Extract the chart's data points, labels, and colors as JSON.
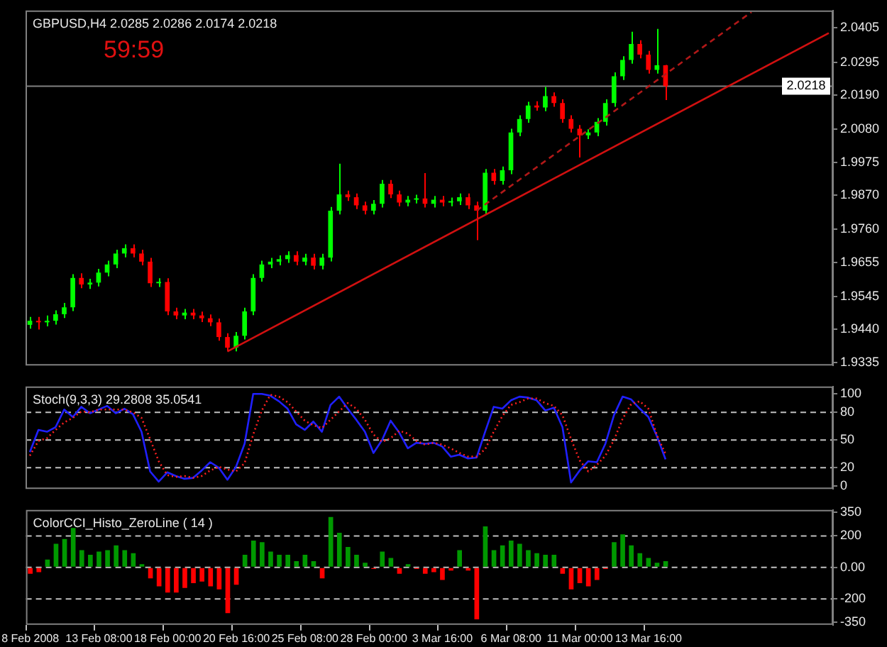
{
  "chart_data": [
    {
      "type": "candlestick",
      "title": "GBPUSD,H4 2.0285 2.0286 2.0174 2.0218",
      "annotations": [
        "59:59"
      ],
      "tick_labels": "y",
      "categories": [
        null,
        null,
        null,
        null,
        null,
        null,
        null,
        null,
        null,
        null,
        null,
        null,
        null,
        null,
        null,
        null,
        null,
        null,
        null,
        null,
        null,
        null,
        null,
        null,
        null,
        null,
        null,
        null,
        null,
        null,
        null,
        null,
        null,
        null,
        null,
        null,
        null,
        null,
        null,
        null,
        null,
        null,
        null,
        null,
        null,
        null,
        null,
        null,
        null,
        null,
        null,
        null,
        null,
        null,
        null,
        null,
        null,
        null,
        null,
        null,
        null,
        null,
        null,
        null,
        null,
        null,
        null,
        null,
        null,
        null,
        null,
        null,
        null,
        null,
        null,
        null,
        null,
        null,
        null,
        null,
        null,
        null,
        null,
        null,
        null,
        null,
        null,
        null,
        null,
        null,
        null,
        null,
        null,
        null
      ],
      "ylim": [
        1.9325,
        2.046
      ],
      "yticks": [
        2.0405,
        2.0295,
        {
          "value": 2.019,
          "label": "2.0190"
        },
        {
          "value": 2.008,
          "label": "2.0080"
        },
        1.9975,
        {
          "value": 1.987,
          "label": "1.9870"
        },
        {
          "value": 1.976,
          "label": "1.9760"
        },
        1.9655,
        1.9545,
        {
          "value": 1.944,
          "label": "1.9440"
        },
        1.9335
      ],
      "ohlc": [
        [
          1.9455,
          1.948,
          1.9443,
          1.9468
        ],
        [
          1.9468,
          1.948,
          1.944,
          1.9463
        ],
        [
          1.9463,
          1.9485,
          1.945,
          1.9468
        ],
        [
          1.9468,
          1.9501,
          1.9456,
          1.9489
        ],
        [
          1.9489,
          1.9525,
          1.9477,
          1.9511
        ],
        [
          1.9511,
          1.9617,
          1.9499,
          1.9605
        ],
        [
          1.9605,
          1.962,
          1.9572,
          1.9584
        ],
        [
          1.9584,
          1.9602,
          1.957,
          1.959
        ],
        [
          1.959,
          1.9634,
          1.9578,
          1.9622
        ],
        [
          1.9622,
          1.966,
          1.961,
          1.9648
        ],
        [
          1.9648,
          1.9695,
          1.9636,
          1.9683
        ],
        [
          1.9683,
          1.9712,
          1.9671,
          1.97
        ],
        [
          1.97,
          1.9712,
          1.9671,
          1.9683
        ],
        [
          1.9683,
          1.9695,
          1.9645,
          1.9657
        ],
        [
          1.9657,
          1.9669,
          1.9576,
          1.9588
        ],
        [
          1.9588,
          1.9604,
          1.9576,
          1.9592
        ],
        [
          1.9592,
          1.9604,
          1.9486,
          1.9498
        ],
        [
          1.9498,
          1.951,
          1.9473,
          1.9485
        ],
        [
          1.9485,
          1.9506,
          1.9473,
          1.9494
        ],
        [
          1.9494,
          1.9506,
          1.9473,
          1.9485
        ],
        [
          1.9485,
          1.9497,
          1.9464,
          1.9476
        ],
        [
          1.9476,
          1.9488,
          1.9451,
          1.9463
        ],
        [
          1.9463,
          1.9475,
          1.9404,
          1.9416
        ],
        [
          1.9416,
          1.9428,
          1.937,
          1.9382
        ],
        [
          1.9382,
          1.9432,
          1.937,
          1.942
        ],
        [
          1.942,
          1.951,
          1.9408,
          1.9498
        ],
        [
          1.9498,
          1.9617,
          1.9486,
          1.9605
        ],
        [
          1.9605,
          1.966,
          1.9593,
          1.9648
        ],
        [
          1.9648,
          1.9669,
          1.9636,
          1.9657
        ],
        [
          1.9657,
          1.9677,
          1.9645,
          1.9665
        ],
        [
          1.9665,
          1.969,
          1.9653,
          1.9678
        ],
        [
          1.9678,
          1.969,
          1.9645,
          1.9657
        ],
        [
          1.9657,
          1.9682,
          1.9645,
          1.967
        ],
        [
          1.967,
          1.9682,
          1.9632,
          1.9644
        ],
        [
          1.9644,
          1.9682,
          1.9632,
          1.967
        ],
        [
          1.967,
          1.9832,
          1.9658,
          1.982
        ],
        [
          1.982,
          1.997,
          1.9808,
          1.9872
        ],
        [
          1.9872,
          1.9884,
          1.9851,
          1.9863
        ],
        [
          1.9863,
          1.9875,
          1.9825,
          1.9837
        ],
        [
          1.9837,
          1.9849,
          1.9808,
          1.982
        ],
        [
          1.982,
          1.9854,
          1.9808,
          1.9842
        ],
        [
          1.9842,
          1.9918,
          1.983,
          1.9906
        ],
        [
          1.9906,
          1.9918,
          1.986,
          1.9872
        ],
        [
          1.9872,
          1.9884,
          1.9834,
          1.9846
        ],
        [
          1.9846,
          1.9867,
          1.9834,
          1.9855
        ],
        [
          1.9855,
          1.9871,
          1.9843,
          1.9859
        ],
        [
          1.9859,
          1.994,
          1.983,
          1.9842
        ],
        [
          1.9842,
          1.9867,
          1.983,
          1.9855
        ],
        [
          1.9855,
          1.9867,
          1.9834,
          1.9846
        ],
        [
          1.9846,
          1.9862,
          1.9834,
          1.985
        ],
        [
          1.985,
          1.9875,
          1.9838,
          1.9863
        ],
        [
          1.9863,
          1.9875,
          1.9825,
          1.9837
        ],
        [
          1.9837,
          1.9849,
          1.9726,
          1.982
        ],
        [
          1.982,
          1.9953,
          1.9808,
          1.9941
        ],
        [
          1.9941,
          1.9953,
          1.9903,
          1.9915
        ],
        [
          1.9915,
          1.9961,
          1.9903,
          1.9949
        ],
        [
          1.9949,
          2.0082,
          1.9937,
          2.007
        ],
        [
          2.007,
          2.0125,
          2.0058,
          2.0113
        ],
        [
          2.0113,
          2.0168,
          2.0101,
          2.0156
        ],
        [
          2.0156,
          2.017,
          2.014,
          2.015
        ],
        [
          2.015,
          2.0216,
          2.0138,
          2.0186
        ],
        [
          2.0186,
          2.0198,
          2.0152,
          2.0164
        ],
        [
          2.0164,
          2.0176,
          2.0101,
          2.0113
        ],
        [
          2.0113,
          2.0125,
          2.007,
          2.0082
        ],
        [
          2.0082,
          2.0094,
          1.999,
          2.0061
        ],
        [
          2.0061,
          2.008,
          2.0049,
          2.007
        ],
        [
          2.007,
          2.0116,
          2.0058,
          2.0104
        ],
        [
          2.0104,
          2.0176,
          2.0092,
          2.0164
        ],
        [
          2.0164,
          2.0262,
          2.0152,
          2.025
        ],
        [
          2.025,
          2.0314,
          2.0238,
          2.0302
        ],
        [
          2.0302,
          2.0392,
          2.029,
          2.0353
        ],
        [
          2.0353,
          2.0365,
          2.0307,
          2.0319
        ],
        [
          2.0319,
          2.0331,
          2.0258,
          2.027
        ],
        [
          2.027,
          2.0401,
          2.0258,
          2.0285
        ],
        [
          2.0285,
          2.0286,
          2.0174,
          2.0218
        ],
        null,
        null,
        null,
        null,
        null,
        null,
        null,
        null,
        null,
        null,
        null,
        null,
        null,
        null,
        null,
        null,
        null,
        null,
        null
      ],
      "colors": [
        "#00ff00",
        "#ff0000",
        "#00ff00",
        "#00ff00",
        "#00ff00",
        "#00ff00",
        "#ff0000",
        "#00ff00",
        "#00ff00",
        "#00ff00",
        "#00ff00",
        "#00ff00",
        "#ff0000",
        "#ff0000",
        "#ff0000",
        "#00ff00",
        "#ff0000",
        "#ff0000",
        "#00ff00",
        "#ff0000",
        "#ff0000",
        "#ff0000",
        "#ff0000",
        "#ff0000",
        "#00ff00",
        "#00ff00",
        "#00ff00",
        "#00ff00",
        "#00ff00",
        "#00ff00",
        "#00ff00",
        "#ff0000",
        "#00ff00",
        "#ff0000",
        "#00ff00",
        "#00ff00",
        "#00ff00",
        "#ff0000",
        "#ff0000",
        "#ff0000",
        "#00ff00",
        "#00ff00",
        "#ff0000",
        "#ff0000",
        "#00ff00",
        "#00ff00",
        "#ff0000",
        "#00ff00",
        "#ff0000",
        "#00ff00",
        "#00ff00",
        "#ff0000",
        "#ff0000",
        "#00ff00",
        "#ff0000",
        "#00ff00",
        "#00ff00",
        "#00ff00",
        "#00ff00",
        "#ff0000",
        "#00ff00",
        "#ff0000",
        "#ff0000",
        "#ff0000",
        "#ff0000",
        "#00ff00",
        "#00ff00",
        "#00ff00",
        "#00ff00",
        "#00ff00",
        "#00ff00",
        "#ff0000",
        "#ff0000",
        "#00ff00",
        "#ff0000",
        null,
        null,
        null,
        null,
        null,
        null,
        null,
        null,
        null,
        null,
        null,
        null,
        null,
        null,
        null,
        null,
        null,
        null,
        null
      ],
      "series": [
        {
          "type": "line",
          "color": "#d01010",
          "values": [
            null,
            null,
            null,
            null,
            null,
            null,
            null,
            null,
            null,
            null,
            null,
            null,
            null,
            null,
            null,
            null,
            null,
            null,
            null,
            null,
            null,
            null,
            null,
            1.937,
            null,
            null,
            null,
            null,
            null,
            null,
            null,
            null,
            null,
            null,
            null,
            null,
            null,
            null,
            null,
            null,
            null,
            null,
            null,
            null,
            null,
            null,
            null,
            null,
            null,
            null,
            null,
            null,
            null,
            null,
            null,
            null,
            null,
            null,
            null,
            null,
            null,
            null,
            null,
            null,
            null,
            null,
            null,
            null,
            null,
            null,
            null,
            null,
            null,
            null,
            null,
            null,
            null,
            null,
            null,
            null,
            null,
            null,
            null,
            null,
            null,
            null,
            null,
            null,
            null,
            null,
            null,
            null,
            null,
            2.0388
          ]
        },
        {
          "type": "line",
          "color": "#b01818",
          "line_style": "dashed",
          "values": [
            null,
            null,
            null,
            null,
            null,
            null,
            null,
            null,
            null,
            null,
            null,
            null,
            null,
            null,
            null,
            null,
            null,
            null,
            null,
            null,
            null,
            null,
            null,
            null,
            null,
            null,
            null,
            null,
            null,
            null,
            null,
            null,
            null,
            null,
            null,
            null,
            null,
            null,
            null,
            null,
            null,
            null,
            null,
            null,
            null,
            null,
            null,
            null,
            null,
            null,
            null,
            null,
            1.982,
            null,
            null,
            null,
            null,
            null,
            null,
            null,
            null,
            null,
            null,
            null,
            null,
            null,
            null,
            null,
            null,
            null,
            null,
            null,
            null,
            null,
            null,
            null,
            null,
            null,
            null,
            null,
            null,
            null,
            null,
            null,
            2.0455,
            null,
            null,
            null,
            null,
            null,
            null,
            null,
            null,
            null
          ]
        }
      ],
      "ref_lines": [
        {
          "axis": "y",
          "value": 2.0218,
          "label": "2.0218",
          "color": "#808080"
        }
      ]
    },
    {
      "type": "line",
      "title": "Stoch(9,3,3) 29.2808 35.0541",
      "tick_labels": "y",
      "categories": [
        null,
        null,
        null,
        null,
        null,
        null,
        null,
        null,
        null,
        null,
        null,
        null,
        null,
        null,
        null,
        null,
        null,
        null,
        null,
        null,
        null,
        null,
        null,
        null,
        null,
        null,
        null,
        null,
        null,
        null,
        null,
        null,
        null,
        null,
        null,
        null,
        null,
        null,
        null,
        null,
        null,
        null,
        null,
        null,
        null,
        null,
        null,
        null,
        null,
        null,
        null,
        null,
        null,
        null,
        null,
        null,
        null,
        null,
        null,
        null,
        null,
        null,
        null,
        null,
        null,
        null,
        null,
        null,
        null,
        null,
        null,
        null,
        null,
        null,
        null,
        null,
        null,
        null,
        null,
        null,
        null,
        null,
        null,
        null,
        null,
        null,
        null,
        null,
        null,
        null,
        null,
        null,
        null,
        null
      ],
      "ylim": [
        -3,
        108
      ],
      "yticks": [
        0,
        20,
        50,
        80,
        100
      ],
      "series": [
        {
          "color": "#ff2020",
          "line_style": "dotted",
          "values": [
            33,
            49,
            52,
            61,
            69,
            74,
            81,
            80,
            83,
            83,
            83,
            83,
            80,
            74,
            51,
            27,
            12,
            10,
            11,
            9,
            11,
            17,
            21,
            18,
            16,
            25,
            56,
            82,
            99,
            97,
            91,
            81,
            71,
            66,
            63,
            72,
            81,
            90,
            84,
            72,
            56,
            48,
            52,
            60,
            57,
            49,
            45,
            47,
            45,
            41,
            36,
            32,
            32,
            40,
            59,
            76,
            88,
            91,
            95,
            95,
            90,
            87,
            77,
            51,
            28,
            16,
            23,
            33,
            50,
            73,
            89,
            92,
            84,
            55,
            35,
            null,
            null,
            null,
            null,
            null,
            null,
            null,
            null,
            null,
            null,
            null,
            null,
            null,
            null,
            null,
            null,
            null,
            null,
            null
          ]
        },
        {
          "color": "#2020ff",
          "values": [
            37,
            61,
            59,
            64,
            83,
            75,
            86,
            79,
            83,
            87,
            79,
            84,
            78,
            59,
            16,
            5,
            15,
            11,
            8,
            9,
            17,
            26,
            20,
            7,
            21,
            46,
            100,
            100,
            98,
            92,
            84,
            67,
            61,
            70,
            59,
            88,
            97,
            84,
            72,
            59,
            36,
            50,
            71,
            58,
            41,
            47,
            46,
            47,
            43,
            32,
            34,
            30,
            31,
            59,
            86,
            84,
            93,
            97,
            96,
            93,
            82,
            85,
            64,
            4,
            17,
            27,
            26,
            46,
            77,
            97,
            94,
            84,
            75,
            54,
            29,
            null,
            null,
            null,
            null,
            null,
            null,
            null,
            null,
            null,
            null,
            null,
            null,
            null,
            null,
            null,
            null,
            null,
            null,
            null
          ]
        }
      ],
      "ref_lines": [
        {
          "axis": "y",
          "value": 20,
          "color": "#c0c0c0",
          "line_style": "dashed"
        },
        {
          "axis": "y",
          "value": 50,
          "color": "#c0c0c0",
          "line_style": "dashed"
        },
        {
          "axis": "y",
          "value": 80,
          "color": "#c0c0c0",
          "line_style": "dashed"
        }
      ]
    },
    {
      "type": "bar",
      "title": "ColorCCI_Histo_ZeroLine ( 14 )",
      "categories": [
        "8 Feb 2008",
        null,
        null,
        null,
        null,
        null,
        null,
        null,
        "13 Feb 08:00",
        null,
        null,
        null,
        null,
        null,
        null,
        null,
        "18 Feb 00:00",
        null,
        null,
        null,
        null,
        null,
        null,
        null,
        "20 Feb 16:00",
        null,
        null,
        null,
        null,
        null,
        null,
        null,
        "25 Feb 08:00",
        null,
        null,
        null,
        null,
        null,
        null,
        null,
        "28 Feb 00:00",
        null,
        null,
        null,
        null,
        null,
        null,
        null,
        "3 Mar 16:00",
        null,
        null,
        null,
        null,
        null,
        null,
        null,
        "6 Mar 08:00",
        null,
        null,
        null,
        null,
        null,
        null,
        null,
        "11 Mar 00:00",
        null,
        null,
        null,
        null,
        null,
        null,
        null,
        "13 Mar 16:00",
        null,
        null,
        null,
        null,
        null,
        null,
        null,
        null,
        null,
        null,
        null,
        null,
        null,
        null,
        null,
        null,
        null,
        null,
        null,
        null,
        null
      ],
      "ylim": [
        -365,
        365
      ],
      "yticks": [
        -350,
        -200,
        {
          "value": 0,
          "label": "0.00"
        },
        200,
        350
      ],
      "values": [
        -40,
        -30,
        50,
        150,
        180,
        250,
        110,
        80,
        100,
        110,
        140,
        110,
        90,
        20,
        -70,
        -120,
        -160,
        -160,
        -130,
        -100,
        -90,
        -120,
        -140,
        -290,
        -110,
        80,
        170,
        160,
        100,
        80,
        80,
        40,
        80,
        40,
        -70,
        320,
        220,
        130,
        80,
        30,
        -10,
        100,
        60,
        -40,
        20,
        -10,
        -40,
        -30,
        -80,
        -20,
        110,
        -20,
        -330,
        260,
        110,
        140,
        170,
        150,
        110,
        90,
        80,
        80,
        -40,
        -140,
        -100,
        -120,
        -80,
        -10,
        160,
        210,
        140,
        90,
        60,
        30,
        40,
        null,
        null,
        null,
        null,
        null,
        null,
        null,
        null,
        null,
        null,
        null,
        null,
        null,
        null,
        null,
        null,
        null,
        null,
        null
      ],
      "colors": [
        "#ff0000",
        "#ff0000",
        "#009900",
        "#009900",
        "#009900",
        "#009900",
        "#009900",
        "#009900",
        "#009900",
        "#009900",
        "#009900",
        "#009900",
        "#009900",
        "#009900",
        "#ff0000",
        "#ff0000",
        "#ff0000",
        "#ff0000",
        "#ff0000",
        "#ff0000",
        "#ff0000",
        "#ff0000",
        "#ff0000",
        "#ff0000",
        "#ff0000",
        "#009900",
        "#009900",
        "#009900",
        "#009900",
        "#009900",
        "#009900",
        "#009900",
        "#009900",
        "#009900",
        "#ff0000",
        "#009900",
        "#009900",
        "#009900",
        "#009900",
        "#009900",
        "#ff0000",
        "#009900",
        "#009900",
        "#ff0000",
        "#009900",
        "#ff0000",
        "#ff0000",
        "#ff0000",
        "#ff0000",
        "#ff0000",
        "#009900",
        "#ff0000",
        "#ff0000",
        "#009900",
        "#009900",
        "#009900",
        "#009900",
        "#009900",
        "#009900",
        "#009900",
        "#009900",
        "#009900",
        "#ff0000",
        "#ff0000",
        "#ff0000",
        "#ff0000",
        "#ff0000",
        "#ff0000",
        "#009900",
        "#009900",
        "#009900",
        "#009900",
        "#009900",
        "#009900",
        "#009900",
        null,
        null,
        null,
        null,
        null,
        null,
        null,
        null,
        null,
        null,
        null,
        null,
        null,
        null,
        null,
        null,
        null,
        null,
        null
      ],
      "ref_lines": [
        {
          "axis": "y",
          "value": 200,
          "color": "#c0c0c0",
          "line_style": "dashed"
        },
        {
          "axis": "y",
          "value": 0,
          "color": "#c0c0c0",
          "line_style": "dashed"
        },
        {
          "axis": "y",
          "value": -200,
          "color": "#c0c0c0",
          "line_style": "dashed"
        }
      ]
    }
  ]
}
